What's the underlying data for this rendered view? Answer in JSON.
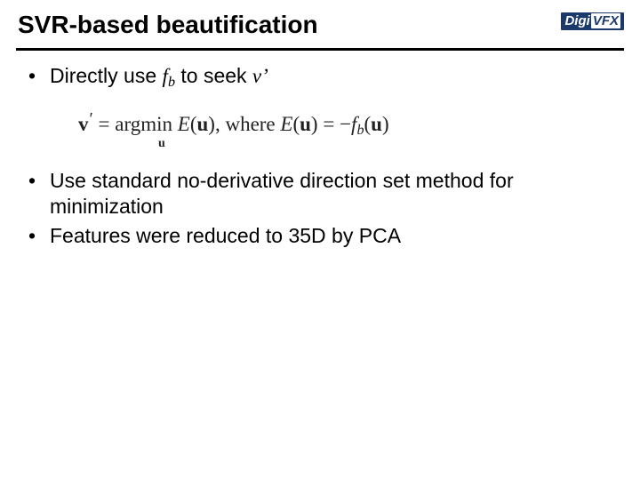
{
  "logo": {
    "left": "Digi",
    "right": "VFX",
    "bg": "#1b3a6b",
    "fg": "#ffffff"
  },
  "title": "SVR-based beautification",
  "bullet1_pre": "Directly use ",
  "bullet1_f": "f",
  "bullet1_b": "b",
  "bullet1_mid": " to seek ",
  "bullet1_v": "v",
  "bullet1_prime": "’",
  "equation": {
    "lhs_v": "v",
    "prime": "′",
    "eq": " = ",
    "argmin": "argmin",
    "sp1": "  ",
    "E1": "E",
    "lp": "(",
    "u": "u",
    "rp": ")",
    "comma_where": ",  where ",
    "E2": "E",
    "eq2": " = −",
    "f": "f",
    "b": "b",
    "under": "u"
  },
  "bullet2": "Use standard no-derivative direction set method for minimization",
  "bullet3": "Features were reduced to 35D by PCA"
}
